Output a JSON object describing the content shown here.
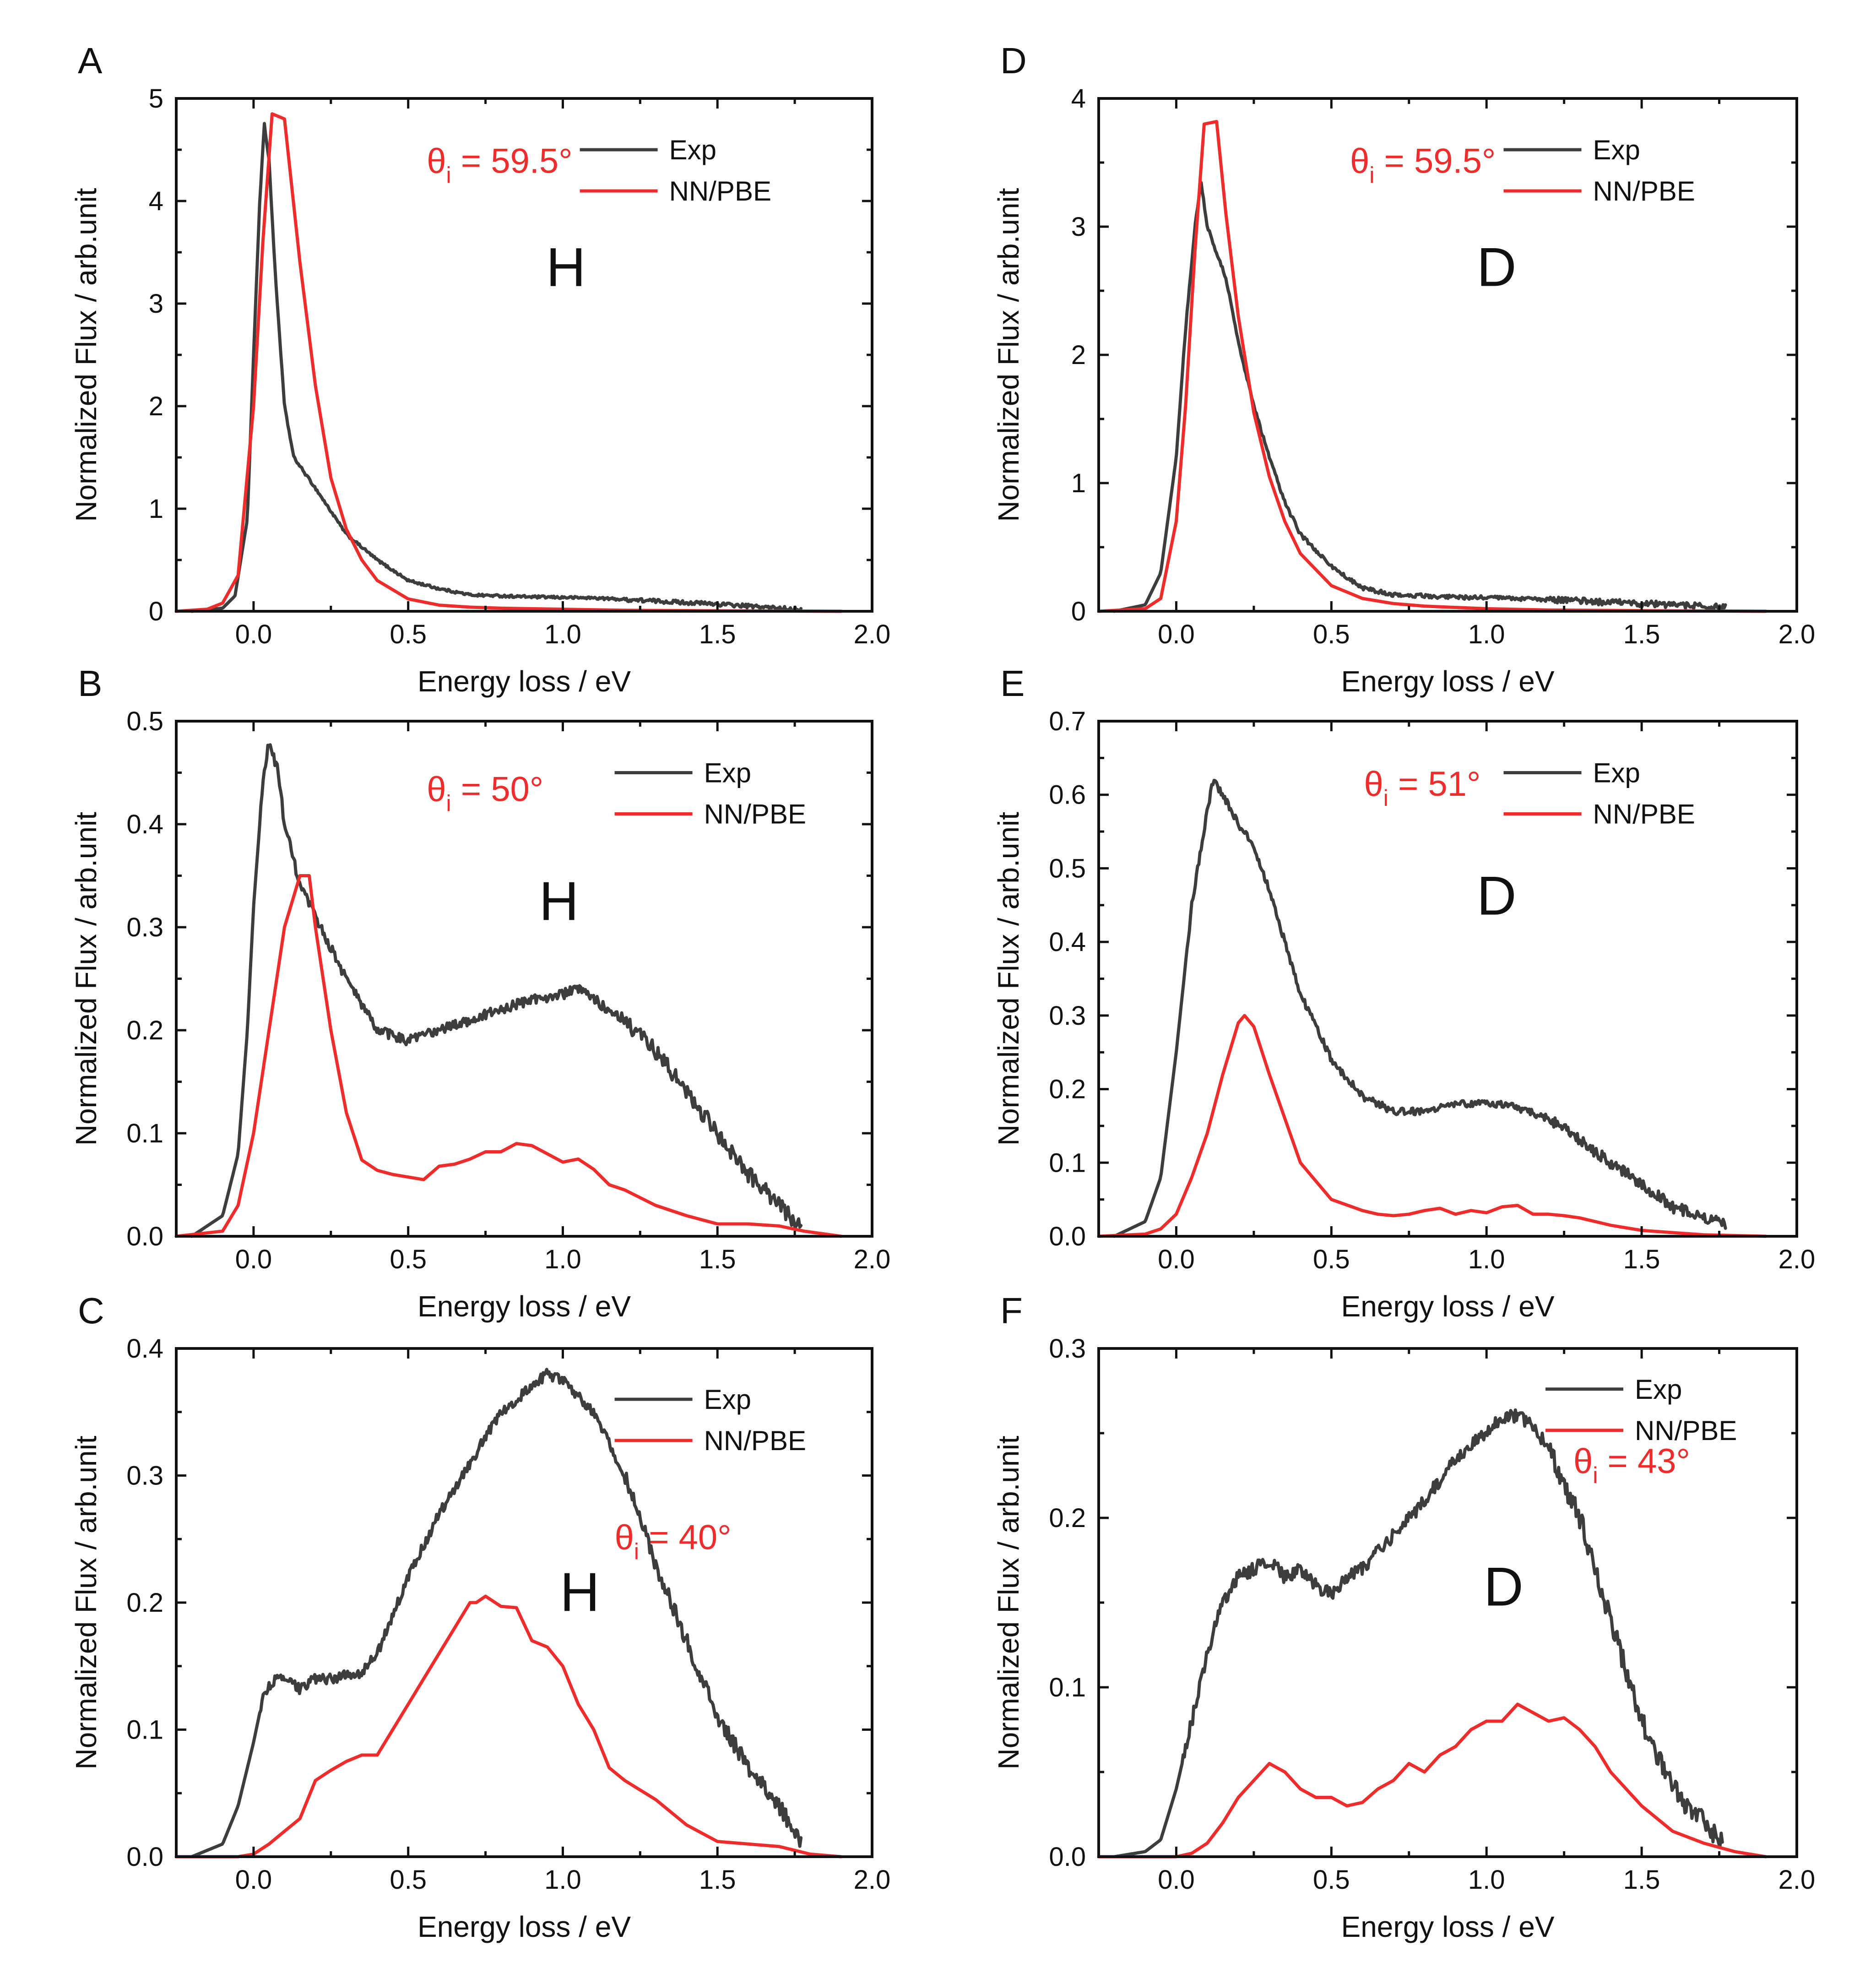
{
  "colors": {
    "exp": "#3d3d3d",
    "nn": "#ee2c2c",
    "axis": "#111111"
  },
  "chart_data": [
    {
      "panel": "A",
      "type": "line",
      "species": "H",
      "angle_symbol": "θ",
      "angle_subscript": "i",
      "angle_value": " = 59.5°",
      "xlabel": "Energy loss / eV",
      "ylabel": "Normalized Flux / arb.unit",
      "xlim": [
        -0.25,
        2.0
      ],
      "ylim": [
        0,
        5
      ],
      "xticks": [
        0.0,
        0.5,
        1.0,
        1.5,
        2.0
      ],
      "xtick_labels": [
        "0.0",
        "0.5",
        "1.0",
        "1.5",
        "2.0"
      ],
      "yticks": [
        0,
        1,
        2,
        3,
        4,
        5
      ],
      "ytick_labels": [
        "0",
        "1",
        "2",
        "3",
        "4",
        "5"
      ],
      "legend": [
        "Exp",
        "NN/PBE"
      ],
      "legend_position": "top-right",
      "series": [
        {
          "name": "Exp",
          "noise": 0.012,
          "x": [
            -0.2,
            -0.1,
            -0.06,
            -0.02,
            0.0,
            0.02,
            0.035,
            0.05,
            0.07,
            0.1,
            0.13,
            0.2,
            0.3,
            0.4,
            0.5,
            0.6,
            0.7,
            0.9,
            1.1,
            1.3,
            1.5,
            1.7,
            1.77
          ],
          "y": [
            0,
            0.03,
            0.15,
            0.9,
            2.5,
            4.0,
            4.75,
            4.4,
            3.3,
            2.0,
            1.5,
            1.2,
            0.75,
            0.5,
            0.3,
            0.22,
            0.16,
            0.14,
            0.13,
            0.1,
            0.07,
            0.03,
            0.02
          ]
        },
        {
          "name": "NN/PBE",
          "x": [
            -0.25,
            -0.15,
            -0.1,
            -0.05,
            0.0,
            0.03,
            0.06,
            0.1,
            0.15,
            0.2,
            0.25,
            0.3,
            0.35,
            0.4,
            0.5,
            0.6,
            0.7,
            0.8,
            1.0,
            1.2,
            1.5,
            1.9
          ],
          "y": [
            0,
            0.02,
            0.08,
            0.35,
            2.0,
            3.6,
            4.85,
            4.8,
            3.4,
            2.2,
            1.3,
            0.8,
            0.5,
            0.3,
            0.12,
            0.06,
            0.04,
            0.03,
            0.02,
            0.01,
            0.005,
            0
          ]
        }
      ]
    },
    {
      "panel": "B",
      "type": "line",
      "species": "H",
      "angle_symbol": "θ",
      "angle_subscript": "i",
      "angle_value": " = 50°",
      "xlabel": "Energy loss / eV",
      "ylabel": "Normalized Flux / arb.unit",
      "xlim": [
        -0.25,
        2.0
      ],
      "ylim": [
        0,
        0.5
      ],
      "xticks": [
        0.0,
        0.5,
        1.0,
        1.5,
        2.0
      ],
      "xtick_labels": [
        "0.0",
        "0.5",
        "1.0",
        "1.5",
        "2.0"
      ],
      "yticks": [
        0,
        0.1,
        0.2,
        0.3,
        0.4,
        0.5
      ],
      "ytick_labels": [
        "0.0",
        "0.1",
        "0.2",
        "0.3",
        "0.4",
        "0.5"
      ],
      "legend": [
        "Exp",
        "NN/PBE"
      ],
      "legend_position": "top-right",
      "series": [
        {
          "name": "Exp",
          "noise": 0.005,
          "x": [
            -0.2,
            -0.1,
            -0.05,
            -0.02,
            0.0,
            0.03,
            0.05,
            0.08,
            0.1,
            0.15,
            0.2,
            0.3,
            0.4,
            0.5,
            0.6,
            0.7,
            0.8,
            0.9,
            1.0,
            1.05,
            1.1,
            1.2,
            1.3,
            1.4,
            1.5,
            1.6,
            1.7,
            1.77
          ],
          "y": [
            0,
            0.02,
            0.08,
            0.2,
            0.32,
            0.44,
            0.48,
            0.45,
            0.4,
            0.34,
            0.31,
            0.25,
            0.2,
            0.19,
            0.2,
            0.21,
            0.22,
            0.23,
            0.235,
            0.24,
            0.23,
            0.21,
            0.18,
            0.14,
            0.1,
            0.06,
            0.03,
            0.01
          ]
        },
        {
          "name": "NN/PBE",
          "x": [
            -0.25,
            -0.1,
            -0.05,
            0.0,
            0.05,
            0.1,
            0.15,
            0.18,
            0.2,
            0.25,
            0.3,
            0.35,
            0.4,
            0.45,
            0.55,
            0.6,
            0.65,
            0.7,
            0.75,
            0.8,
            0.85,
            0.9,
            0.95,
            1.0,
            1.05,
            1.1,
            1.15,
            1.2,
            1.3,
            1.4,
            1.5,
            1.6,
            1.7,
            1.78,
            1.9
          ],
          "y": [
            0,
            0.005,
            0.03,
            0.1,
            0.2,
            0.3,
            0.35,
            0.35,
            0.3,
            0.2,
            0.12,
            0.074,
            0.064,
            0.06,
            0.055,
            0.068,
            0.07,
            0.075,
            0.082,
            0.082,
            0.09,
            0.088,
            0.08,
            0.072,
            0.075,
            0.065,
            0.05,
            0.045,
            0.03,
            0.02,
            0.012,
            0.012,
            0.01,
            0.005,
            0
          ]
        }
      ]
    },
    {
      "panel": "C",
      "type": "line",
      "species": "H",
      "angle_symbol": "θ",
      "angle_subscript": "i",
      "angle_value": " = 40°",
      "xlabel": "Energy loss / eV",
      "ylabel": "Normalized Flux / arb.unit",
      "xlim": [
        -0.25,
        2.0
      ],
      "ylim": [
        0,
        0.4
      ],
      "xticks": [
        0.0,
        0.5,
        1.0,
        1.5,
        2.0
      ],
      "xtick_labels": [
        "0.0",
        "0.5",
        "1.0",
        "1.5",
        "2.0"
      ],
      "yticks": [
        0,
        0.1,
        0.2,
        0.3,
        0.4
      ],
      "ytick_labels": [
        "0.0",
        "0.1",
        "0.2",
        "0.3",
        "0.4"
      ],
      "legend": [
        "Exp",
        "NN/PBE"
      ],
      "legend_position": "top-right",
      "series": [
        {
          "name": "Exp",
          "noise": 0.004,
          "x": [
            -0.2,
            -0.1,
            -0.05,
            0.0,
            0.03,
            0.06,
            0.1,
            0.15,
            0.2,
            0.25,
            0.3,
            0.35,
            0.4,
            0.5,
            0.6,
            0.7,
            0.8,
            0.9,
            0.95,
            1.0,
            1.1,
            1.2,
            1.3,
            1.4,
            1.5,
            1.6,
            1.7,
            1.77
          ],
          "y": [
            0,
            0.01,
            0.04,
            0.09,
            0.125,
            0.138,
            0.14,
            0.132,
            0.14,
            0.14,
            0.143,
            0.145,
            0.16,
            0.22,
            0.27,
            0.31,
            0.35,
            0.37,
            0.38,
            0.375,
            0.35,
            0.3,
            0.23,
            0.17,
            0.11,
            0.07,
            0.04,
            0.01
          ]
        },
        {
          "name": "NN/PBE",
          "x": [
            -0.25,
            -0.05,
            0.0,
            0.05,
            0.1,
            0.15,
            0.2,
            0.25,
            0.3,
            0.35,
            0.4,
            0.45,
            0.5,
            0.55,
            0.6,
            0.65,
            0.7,
            0.72,
            0.75,
            0.8,
            0.85,
            0.9,
            0.95,
            1.0,
            1.05,
            1.1,
            1.15,
            1.2,
            1.3,
            1.4,
            1.5,
            1.6,
            1.7,
            1.8,
            1.9
          ],
          "y": [
            0,
            0,
            0.002,
            0.01,
            0.02,
            0.03,
            0.06,
            0.068,
            0.075,
            0.08,
            0.08,
            0.1,
            0.12,
            0.14,
            0.16,
            0.18,
            0.2,
            0.2,
            0.205,
            0.197,
            0.196,
            0.17,
            0.165,
            0.15,
            0.12,
            0.1,
            0.07,
            0.06,
            0.045,
            0.025,
            0.012,
            0.01,
            0.008,
            0.002,
            0
          ]
        }
      ]
    },
    {
      "panel": "D",
      "type": "line",
      "species": "D",
      "angle_symbol": "θ",
      "angle_subscript": "i",
      "angle_value": " = 59.5°",
      "xlabel": "Energy loss / eV",
      "ylabel": "Normalized Flux / arb.unit",
      "xlim": [
        -0.25,
        2.0
      ],
      "ylim": [
        0,
        4
      ],
      "xticks": [
        0.0,
        0.5,
        1.0,
        1.5,
        2.0
      ],
      "xtick_labels": [
        "0.0",
        "0.5",
        "1.0",
        "1.5",
        "2.0"
      ],
      "yticks": [
        0,
        1,
        2,
        3,
        4
      ],
      "ytick_labels": [
        "0",
        "1",
        "2",
        "3",
        "4"
      ],
      "legend": [
        "Exp",
        "NN/PBE"
      ],
      "legend_position": "top-right",
      "series": [
        {
          "name": "Exp",
          "noise": 0.015,
          "x": [
            -0.2,
            -0.1,
            -0.05,
            0.0,
            0.03,
            0.06,
            0.08,
            0.1,
            0.13,
            0.16,
            0.2,
            0.25,
            0.3,
            0.35,
            0.4,
            0.5,
            0.6,
            0.7,
            0.9,
            1.1,
            1.3,
            1.5,
            1.7,
            1.77
          ],
          "y": [
            0,
            0.05,
            0.3,
            1.2,
            2.2,
            3.0,
            3.35,
            3.0,
            2.8,
            2.6,
            2.1,
            1.6,
            1.2,
            0.85,
            0.6,
            0.35,
            0.18,
            0.13,
            0.11,
            0.1,
            0.08,
            0.06,
            0.04,
            0.03
          ]
        },
        {
          "name": "NN/PBE",
          "x": [
            -0.25,
            -0.1,
            -0.05,
            0.0,
            0.03,
            0.06,
            0.09,
            0.13,
            0.16,
            0.2,
            0.25,
            0.3,
            0.35,
            0.4,
            0.5,
            0.6,
            0.7,
            0.8,
            1.0,
            1.2,
            1.5,
            1.9
          ],
          "y": [
            0,
            0.02,
            0.1,
            0.7,
            1.6,
            2.8,
            3.8,
            3.82,
            3.1,
            2.3,
            1.55,
            1.05,
            0.7,
            0.45,
            0.2,
            0.1,
            0.06,
            0.04,
            0.02,
            0.01,
            0.005,
            0
          ]
        }
      ]
    },
    {
      "panel": "E",
      "type": "line",
      "species": "D",
      "angle_symbol": "θ",
      "angle_subscript": "i",
      "angle_value": " = 51°",
      "xlabel": "Energy loss / eV",
      "ylabel": "Normalized Flux / arb.unit",
      "xlim": [
        -0.25,
        2.0
      ],
      "ylim": [
        0,
        0.7
      ],
      "xticks": [
        0.0,
        0.5,
        1.0,
        1.5,
        2.0
      ],
      "xtick_labels": [
        "0.0",
        "0.5",
        "1.0",
        "1.5",
        "2.0"
      ],
      "yticks": [
        0,
        0.1,
        0.2,
        0.3,
        0.4,
        0.5,
        0.6,
        0.7
      ],
      "ytick_labels": [
        "0.0",
        "0.1",
        "0.2",
        "0.3",
        "0.4",
        "0.5",
        "0.6",
        "0.7"
      ],
      "legend": [
        "Exp",
        "NN/PBE"
      ],
      "legend_position": "top-right",
      "series": [
        {
          "name": "Exp",
          "noise": 0.005,
          "x": [
            -0.2,
            -0.1,
            -0.05,
            0.0,
            0.05,
            0.1,
            0.12,
            0.15,
            0.2,
            0.25,
            0.3,
            0.35,
            0.4,
            0.5,
            0.6,
            0.7,
            0.8,
            0.9,
            1.0,
            1.05,
            1.1,
            1.2,
            1.3,
            1.4,
            1.5,
            1.6,
            1.7,
            1.77
          ],
          "y": [
            0,
            0.02,
            0.08,
            0.25,
            0.45,
            0.58,
            0.62,
            0.6,
            0.56,
            0.53,
            0.47,
            0.4,
            0.33,
            0.24,
            0.19,
            0.17,
            0.17,
            0.18,
            0.18,
            0.18,
            0.175,
            0.16,
            0.13,
            0.1,
            0.07,
            0.04,
            0.025,
            0.015
          ]
        },
        {
          "name": "NN/PBE",
          "x": [
            -0.25,
            -0.1,
            -0.05,
            0.0,
            0.05,
            0.1,
            0.15,
            0.2,
            0.22,
            0.25,
            0.3,
            0.35,
            0.4,
            0.45,
            0.5,
            0.6,
            0.65,
            0.7,
            0.75,
            0.8,
            0.85,
            0.9,
            0.95,
            1.0,
            1.05,
            1.1,
            1.15,
            1.2,
            1.25,
            1.3,
            1.4,
            1.5,
            1.6,
            1.7,
            1.9
          ],
          "y": [
            0,
            0.003,
            0.01,
            0.03,
            0.08,
            0.14,
            0.22,
            0.29,
            0.3,
            0.285,
            0.22,
            0.16,
            0.1,
            0.075,
            0.05,
            0.035,
            0.03,
            0.028,
            0.03,
            0.035,
            0.038,
            0.03,
            0.035,
            0.032,
            0.04,
            0.042,
            0.03,
            0.03,
            0.028,
            0.025,
            0.015,
            0.008,
            0.005,
            0.002,
            0
          ]
        }
      ]
    },
    {
      "panel": "F",
      "type": "line",
      "species": "D",
      "angle_symbol": "θ",
      "angle_subscript": "i",
      "angle_value": " = 43°",
      "xlabel": "Energy loss / eV",
      "ylabel": "Normalized Flux / arb.unit",
      "xlim": [
        -0.25,
        2.0
      ],
      "ylim": [
        0,
        0.3
      ],
      "xticks": [
        0.0,
        0.5,
        1.0,
        1.5,
        2.0
      ],
      "xtick_labels": [
        "0.0",
        "0.5",
        "1.0",
        "1.5",
        "2.0"
      ],
      "yticks": [
        0,
        0.1,
        0.2,
        0.3
      ],
      "ytick_labels": [
        "0.0",
        "0.1",
        "0.2",
        "0.3"
      ],
      "legend": [
        "Exp",
        "NN/PBE"
      ],
      "legend_position": "top-right",
      "series": [
        {
          "name": "Exp",
          "noise": 0.004,
          "x": [
            -0.2,
            -0.1,
            -0.05,
            0.0,
            0.05,
            0.1,
            0.15,
            0.2,
            0.25,
            0.3,
            0.35,
            0.4,
            0.45,
            0.5,
            0.55,
            0.6,
            0.7,
            0.8,
            0.9,
            1.0,
            1.05,
            1.1,
            1.15,
            1.2,
            1.3,
            1.4,
            1.5,
            1.6,
            1.7,
            1.76
          ],
          "y": [
            0,
            0.003,
            0.01,
            0.04,
            0.08,
            0.12,
            0.15,
            0.165,
            0.17,
            0.175,
            0.165,
            0.17,
            0.16,
            0.155,
            0.165,
            0.17,
            0.19,
            0.21,
            0.235,
            0.25,
            0.26,
            0.26,
            0.255,
            0.24,
            0.2,
            0.14,
            0.08,
            0.04,
            0.02,
            0.01
          ]
        },
        {
          "name": "NN/PBE",
          "x": [
            -0.25,
            0.0,
            0.05,
            0.1,
            0.15,
            0.2,
            0.25,
            0.3,
            0.35,
            0.4,
            0.45,
            0.5,
            0.55,
            0.6,
            0.65,
            0.7,
            0.75,
            0.8,
            0.85,
            0.9,
            0.95,
            1.0,
            1.05,
            1.1,
            1.15,
            1.2,
            1.25,
            1.3,
            1.35,
            1.4,
            1.5,
            1.6,
            1.7,
            1.8,
            1.9
          ],
          "y": [
            0,
            0,
            0.002,
            0.008,
            0.02,
            0.035,
            0.045,
            0.055,
            0.05,
            0.04,
            0.035,
            0.035,
            0.03,
            0.032,
            0.04,
            0.045,
            0.055,
            0.05,
            0.06,
            0.065,
            0.075,
            0.08,
            0.08,
            0.09,
            0.085,
            0.08,
            0.082,
            0.075,
            0.065,
            0.05,
            0.03,
            0.015,
            0.008,
            0.003,
            0
          ]
        }
      ]
    }
  ]
}
